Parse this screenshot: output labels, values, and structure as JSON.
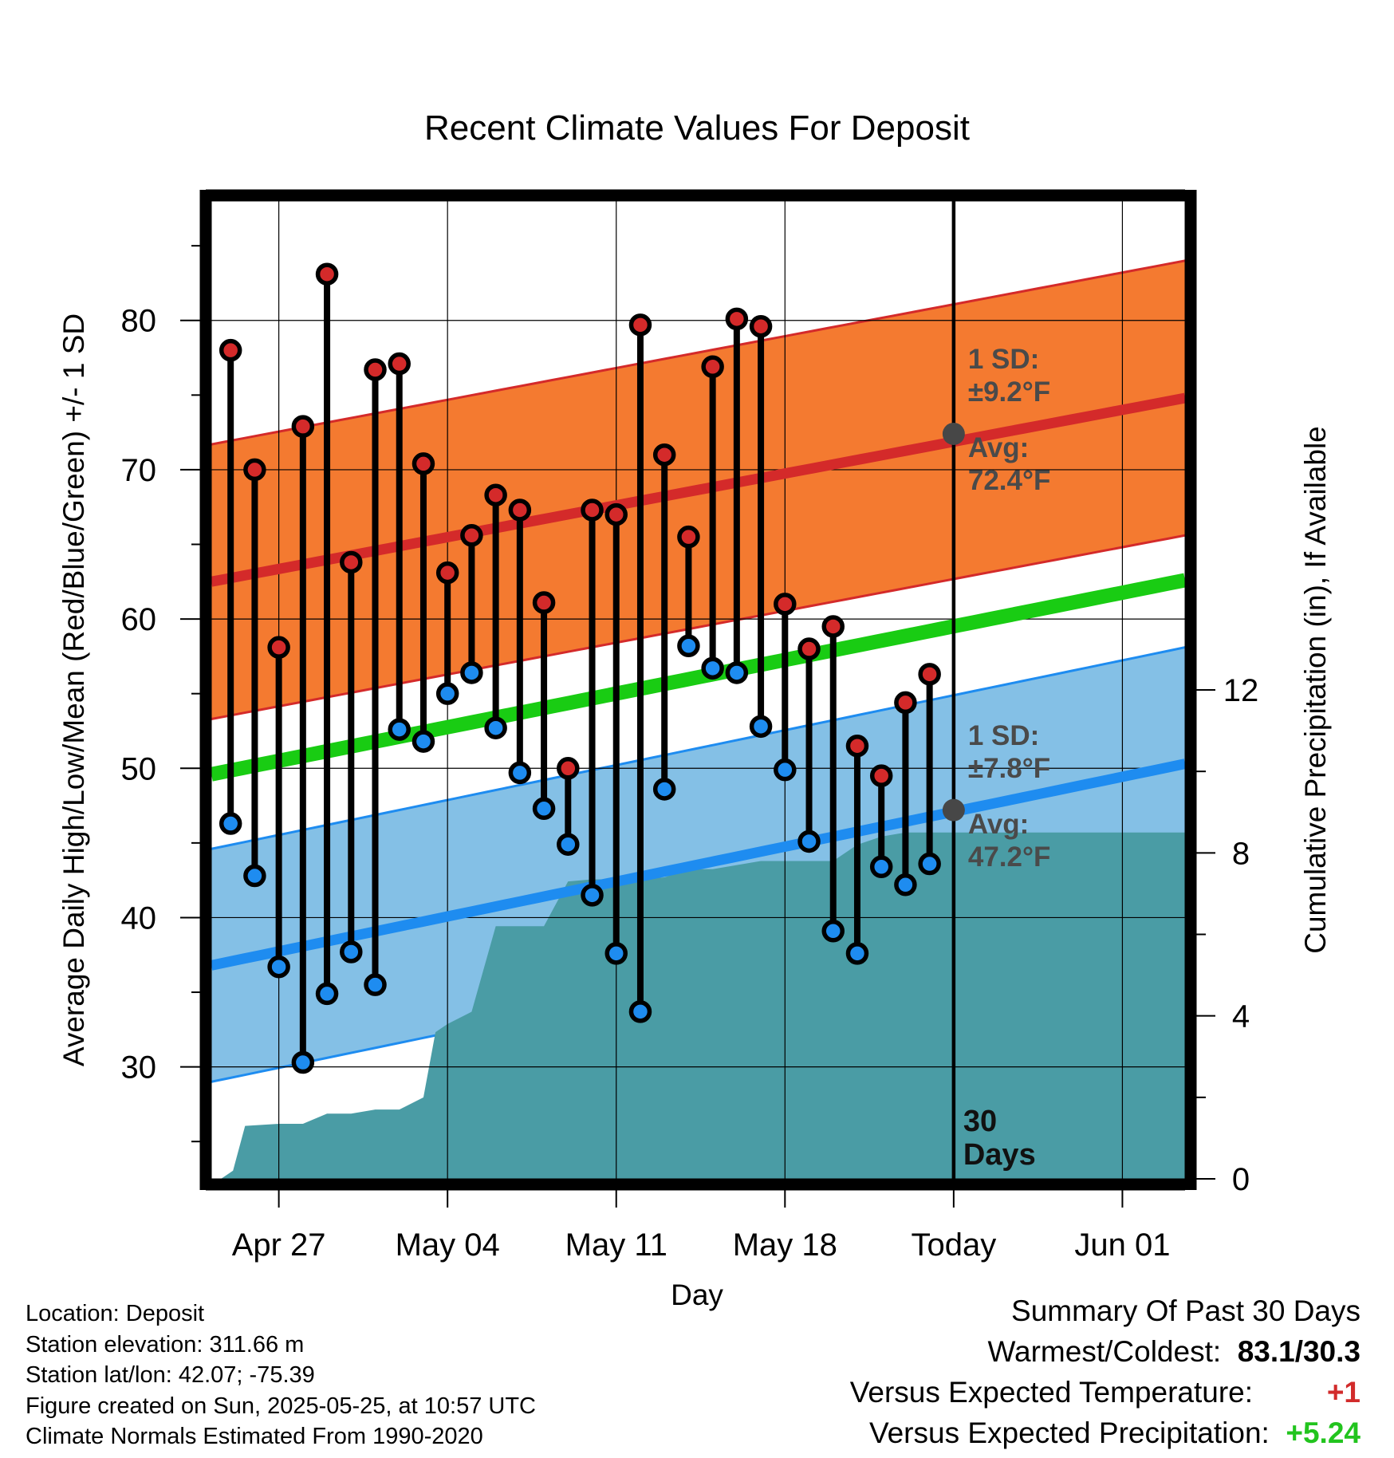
{
  "chart_data": {
    "type": "line",
    "title": "Recent Climate Values For Deposit",
    "xlabel": "Day",
    "ylabel": "Average Daily High/Low/Mean (Red/Blue/Green) +/- 1 SD",
    "y2label": "Cumulative Precipitation (in), If Available",
    "ylim": [
      22.5,
      88
    ],
    "y2lim": [
      0,
      24
    ],
    "y_ticks": [
      30,
      40,
      50,
      60,
      70,
      80
    ],
    "y2_ticks": [
      0,
      4,
      8,
      12
    ],
    "x_ticks": [
      {
        "day": 27,
        "label": "Apr 27"
      },
      {
        "day": 34,
        "label": "May 04"
      },
      {
        "day": 41,
        "label": "May 11"
      },
      {
        "day": 48,
        "label": "May 18"
      },
      {
        "day": 55,
        "label": "Today"
      },
      {
        "day": 62,
        "label": "Jun 01"
      }
    ],
    "x_range_days": [
      24.2,
      64.6
    ],
    "today_day": 55,
    "grid": true,
    "normal_high": {
      "start": 62.5,
      "end": 74.8,
      "sd": 9.2,
      "color": "#d42a2a",
      "band_color": "#f47a30"
    },
    "normal_low": {
      "start": 36.8,
      "end": 50.3,
      "sd": 7.8,
      "color": "#1e8cf0",
      "band_color": "#84c0e6"
    },
    "normal_mean": {
      "start": 49.6,
      "end": 62.6,
      "color": "#19cc13"
    },
    "observed": [
      {
        "day": 25,
        "high": 78.0,
        "low": 46.3
      },
      {
        "day": 26,
        "high": 70.0,
        "low": 42.8
      },
      {
        "day": 27,
        "high": 58.1,
        "low": 36.7
      },
      {
        "day": 28,
        "high": 72.9,
        "low": 30.3
      },
      {
        "day": 29,
        "high": 83.1,
        "low": 34.9
      },
      {
        "day": 30,
        "high": 63.8,
        "low": 37.7
      },
      {
        "day": 31,
        "high": 76.7,
        "low": 35.5
      },
      {
        "day": 32,
        "high": 77.1,
        "low": 52.6
      },
      {
        "day": 33,
        "high": 70.4,
        "low": 51.8
      },
      {
        "day": 34,
        "high": 63.1,
        "low": 55.0
      },
      {
        "day": 35,
        "high": 65.6,
        "low": 56.4
      },
      {
        "day": 36,
        "high": 68.3,
        "low": 52.7
      },
      {
        "day": 37,
        "high": 67.3,
        "low": 49.7
      },
      {
        "day": 38,
        "high": 61.1,
        "low": 47.3
      },
      {
        "day": 39,
        "high": 50.0,
        "low": 44.9
      },
      {
        "day": 40,
        "high": 67.3,
        "low": 41.5
      },
      {
        "day": 41,
        "high": 67.0,
        "low": 37.6
      },
      {
        "day": 42,
        "high": 79.7,
        "low": 33.7
      },
      {
        "day": 43,
        "high": 71.0,
        "low": 48.6
      },
      {
        "day": 44,
        "high": 65.5,
        "low": 58.2
      },
      {
        "day": 45,
        "high": 76.9,
        "low": 56.7
      },
      {
        "day": 46,
        "high": 80.1,
        "low": 56.4
      },
      {
        "day": 47,
        "high": 79.6,
        "low": 52.8
      },
      {
        "day": 48,
        "high": 61.0,
        "low": 49.9
      },
      {
        "day": 49,
        "high": 58.0,
        "low": 45.1
      },
      {
        "day": 50,
        "high": 59.5,
        "low": 39.1
      },
      {
        "day": 51,
        "high": 51.5,
        "low": 37.6
      },
      {
        "day": 52,
        "high": 49.5,
        "low": 43.4
      },
      {
        "day": 53,
        "high": 54.4,
        "low": 42.2
      },
      {
        "day": 54,
        "high": 56.3,
        "low": 43.6
      }
    ],
    "precip_cumulative": [
      {
        "day": 24.2,
        "value": 0.0
      },
      {
        "day": 24.6,
        "value": 0.0
      },
      {
        "day": 25.1,
        "value": 0.2
      },
      {
        "day": 25.6,
        "value": 1.3
      },
      {
        "day": 27.0,
        "value": 1.35
      },
      {
        "day": 28.0,
        "value": 1.35
      },
      {
        "day": 29.0,
        "value": 1.6
      },
      {
        "day": 30.0,
        "value": 1.6
      },
      {
        "day": 31.0,
        "value": 1.7
      },
      {
        "day": 32.0,
        "value": 1.7
      },
      {
        "day": 33.0,
        "value": 2.0
      },
      {
        "day": 33.5,
        "value": 3.6
      },
      {
        "day": 34.0,
        "value": 3.8
      },
      {
        "day": 35.0,
        "value": 4.1
      },
      {
        "day": 36.0,
        "value": 6.2
      },
      {
        "day": 37.0,
        "value": 6.2
      },
      {
        "day": 38.0,
        "value": 6.2
      },
      {
        "day": 39.0,
        "value": 7.3
      },
      {
        "day": 40.0,
        "value": 7.35
      },
      {
        "day": 41.0,
        "value": 7.35
      },
      {
        "day": 42.0,
        "value": 7.35
      },
      {
        "day": 43.0,
        "value": 7.4
      },
      {
        "day": 44.0,
        "value": 7.6
      },
      {
        "day": 45.0,
        "value": 7.6
      },
      {
        "day": 46.0,
        "value": 7.7
      },
      {
        "day": 47.0,
        "value": 7.8
      },
      {
        "day": 48.0,
        "value": 7.8
      },
      {
        "day": 49.0,
        "value": 7.8
      },
      {
        "day": 50.0,
        "value": 7.8
      },
      {
        "day": 51.0,
        "value": 8.2
      },
      {
        "day": 52.0,
        "value": 8.4
      },
      {
        "day": 53.0,
        "value": 8.5
      },
      {
        "day": 54.0,
        "value": 8.5
      },
      {
        "day": 64.6,
        "value": 8.5
      }
    ],
    "precip_color": "#4a9ca5",
    "annotations": {
      "high_sd": "1 SD:",
      "high_sd_value": "±9.2°F",
      "high_avg": "Avg:",
      "high_avg_value": "72.4°F",
      "high_avg_point": 72.4,
      "low_sd": "1 SD:",
      "low_sd_value": "±7.8°F",
      "low_avg": "Avg:",
      "low_avg_value": "47.2°F",
      "low_avg_point": 47.2,
      "days_count": "30",
      "days_label": "Days"
    }
  },
  "info": {
    "location": "Location: Deposit",
    "elevation": "Station elevation: 311.66 m",
    "latlon": "Station lat/lon: 42.07; -75.39",
    "created": "Figure created on Sun, 2025-05-25, at 10:57 UTC",
    "normals": "Climate Normals Estimated From 1990-2020"
  },
  "summary": {
    "title": "Summary Of Past 30 Days",
    "warmest_label": "Warmest/Coldest:",
    "warmest_value": "83.1/30.3",
    "temp_label": "Versus Expected Temperature:",
    "temp_value": "+1",
    "precip_label": "Versus Expected Precipitation:",
    "precip_value": "+5.24"
  }
}
